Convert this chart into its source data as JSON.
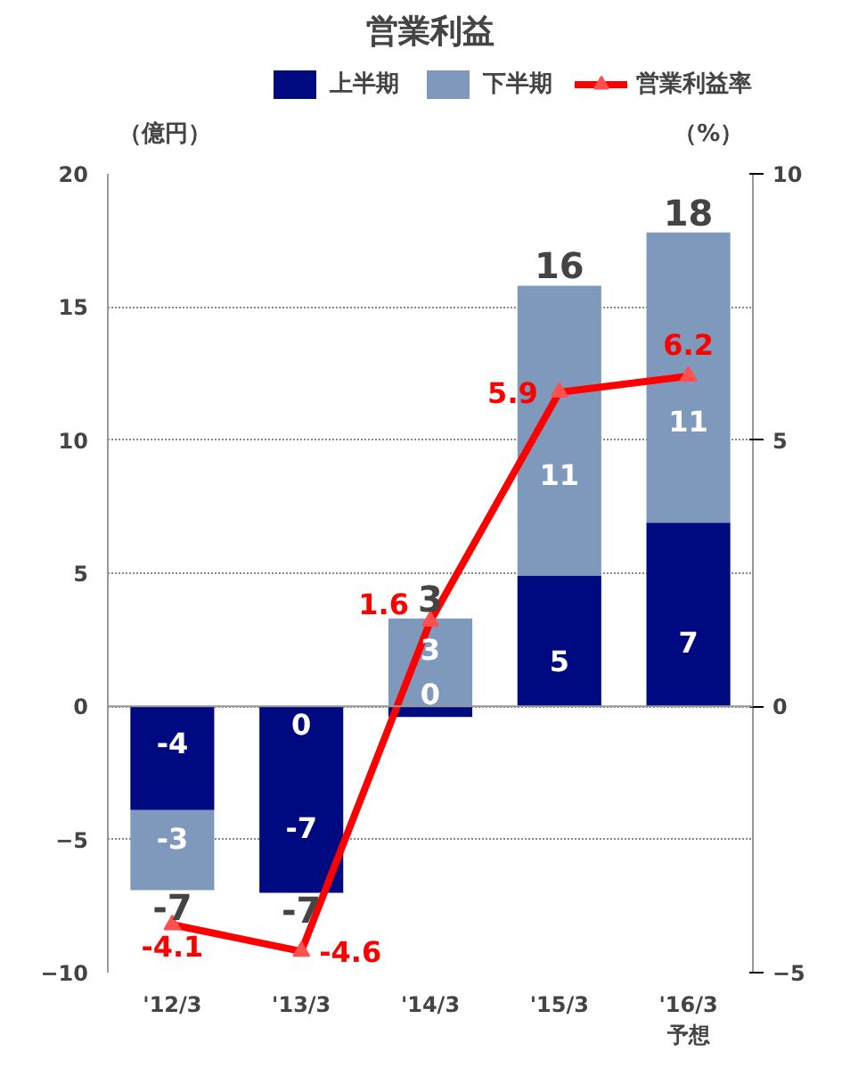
{
  "chart_data": {
    "type": "bar",
    "title": "営業利益",
    "categories": [
      "'12/3",
      "'13/3",
      "'14/3",
      "'15/3",
      "'16/3\n予想"
    ],
    "stacked": true,
    "ylabel": "（億円）",
    "y2label": "（%）",
    "ylim": [
      -10,
      20
    ],
    "yticks": [
      -10,
      -5,
      0,
      5,
      10,
      15,
      20
    ],
    "y2lim": [
      -5,
      10
    ],
    "y2ticks": [
      -5,
      0,
      5,
      10
    ],
    "grid": "y",
    "legend": "top",
    "series": [
      {
        "name": "上半期",
        "color": "#000a80",
        "values": [
          -3.9,
          -7,
          -0.4,
          4.9,
          6.9
        ],
        "value_labels": [
          "-4",
          "-7",
          "0",
          "5",
          "7"
        ]
      },
      {
        "name": "下半期",
        "color": "#7f99bd",
        "values": [
          -3.0,
          0,
          3.3,
          10.9,
          10.9
        ],
        "value_labels": [
          "-3",
          "0",
          "3",
          "11",
          "11"
        ]
      },
      {
        "name": "営業利益率",
        "type": "line",
        "axis": "y2",
        "color": "#ff0000",
        "marker": "triangle",
        "values": [
          -4.1,
          -4.6,
          1.6,
          5.9,
          6.2
        ],
        "value_labels": [
          "-4.1",
          "-4.6",
          "1.6",
          "5.9",
          "6.2"
        ]
      }
    ],
    "totals": [
      "-7",
      "-7",
      "3",
      "16",
      "18"
    ]
  }
}
